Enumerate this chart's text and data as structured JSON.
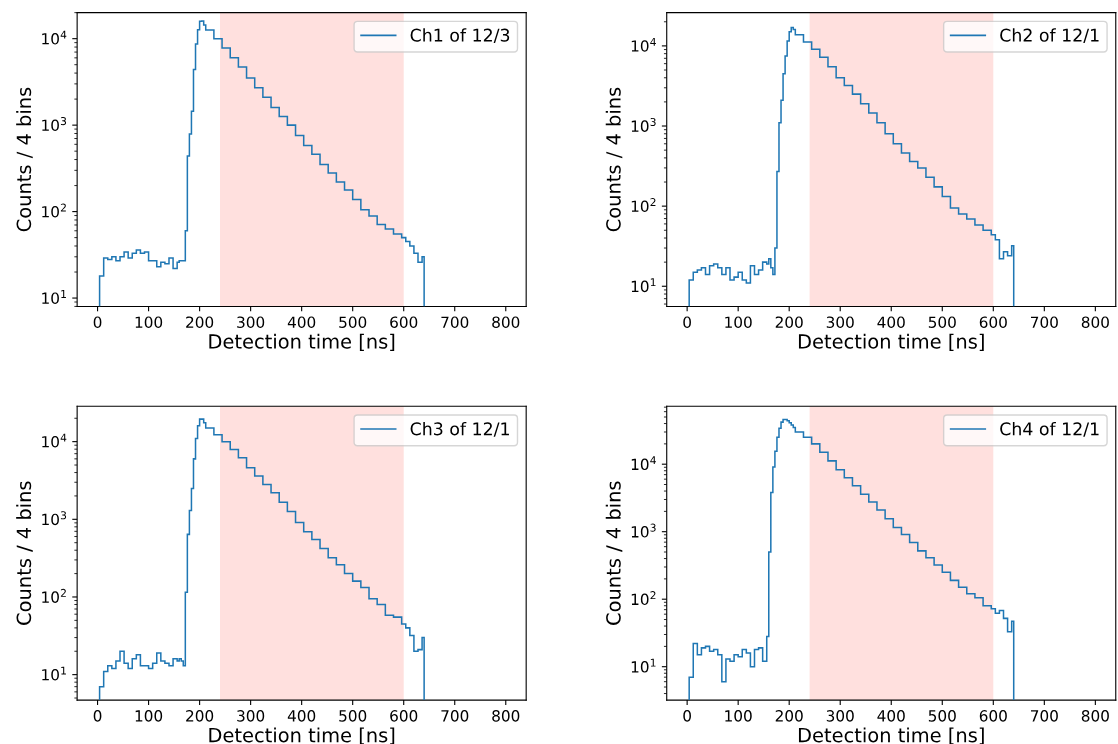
{
  "chart_data": [
    {
      "type": "histogram",
      "xlabel": "Detection time [ns]",
      "ylabel": "Counts / 4 bins",
      "log": "y",
      "legend": "top right",
      "grid": false,
      "bins": [
        4,
        12,
        20,
        28,
        36,
        44,
        52,
        60,
        68,
        76,
        84,
        92,
        100,
        108,
        116,
        124,
        132,
        140,
        148,
        156,
        160,
        164,
        168,
        172,
        176,
        180,
        184,
        188,
        192,
        196,
        200,
        204,
        208,
        212,
        228,
        244,
        260,
        276,
        292,
        308,
        324,
        340,
        356,
        372,
        388,
        404,
        420,
        436,
        452,
        468,
        484,
        500,
        516,
        532,
        548,
        564,
        580,
        596,
        604,
        612,
        620,
        628,
        636,
        640
      ],
      "series": [
        {
          "name": "Ch1 of 12/3",
          "color": "#1f77b4",
          "values": [
            18,
            29,
            28,
            30,
            27,
            30,
            34,
            29,
            33,
            36,
            33,
            34,
            27,
            27,
            23,
            26,
            25,
            29,
            22,
            26,
            27,
            27,
            27,
            60,
            440,
            790,
            1450,
            4400,
            8700,
            12700,
            15900,
            16000,
            14400,
            12600,
            10000,
            7800,
            6000,
            4700,
            3500,
            2700,
            2100,
            1600,
            1260,
            1000,
            760,
            580,
            460,
            350,
            280,
            220,
            178,
            138,
            105,
            89,
            71,
            63,
            55,
            50,
            45,
            40,
            33,
            26,
            30
          ]
        }
      ],
      "bands": [
        {
          "axis": "x",
          "from": 240,
          "to": 600,
          "color": "#ffe0de"
        }
      ],
      "xlim": [
        -40,
        840
      ],
      "xticks": [
        0,
        100,
        200,
        300,
        400,
        500,
        600,
        700,
        800
      ],
      "ylim": [
        8,
        20000
      ],
      "yticks": [
        {
          "value": 10,
          "label": "10$^{1}$"
        },
        {
          "value": 100,
          "label": "10$^{2}$"
        },
        {
          "value": 1000,
          "label": "10$^{3}$"
        },
        {
          "value": 10000,
          "label": "10$^{4}$"
        }
      ]
    },
    {
      "type": "histogram",
      "xlabel": "Detection time [ns]",
      "ylabel": "Counts / 4 bins",
      "log": "y",
      "legend": "top right",
      "grid": false,
      "bins": [
        4,
        12,
        20,
        28,
        36,
        44,
        52,
        60,
        68,
        76,
        84,
        92,
        100,
        108,
        116,
        124,
        132,
        140,
        148,
        156,
        160,
        164,
        168,
        172,
        176,
        180,
        184,
        188,
        192,
        196,
        200,
        204,
        208,
        212,
        228,
        244,
        260,
        276,
        292,
        308,
        324,
        340,
        356,
        372,
        388,
        404,
        420,
        436,
        452,
        468,
        484,
        500,
        516,
        532,
        548,
        564,
        580,
        596,
        604,
        612,
        620,
        628,
        636,
        640
      ],
      "series": [
        {
          "name": "Ch2 of 12/1",
          "color": "#1f77b4",
          "values": [
            12,
            15,
            16,
            17,
            14,
            18,
            19,
            17,
            14,
            17,
            12,
            13,
            15,
            12,
            11,
            18,
            14,
            16,
            20,
            19,
            22,
            17,
            14,
            30,
            270,
            1100,
            2100,
            4500,
            7500,
            11500,
            15000,
            17000,
            16000,
            13800,
            11200,
            9100,
            7200,
            5500,
            4000,
            3200,
            2500,
            1900,
            1450,
            1100,
            800,
            600,
            460,
            360,
            300,
            230,
            174,
            132,
            95,
            80,
            69,
            58,
            50,
            44,
            38,
            22,
            27,
            24,
            32
          ]
        }
      ],
      "bands": [
        {
          "axis": "x",
          "from": 240,
          "to": 600,
          "color": "#ffe0de"
        }
      ],
      "xlim": [
        -40,
        840
      ],
      "xticks": [
        0,
        100,
        200,
        300,
        400,
        500,
        600,
        700,
        800
      ],
      "ylim": [
        5.6,
        26000
      ],
      "yticks": [
        {
          "value": 10,
          "label": "10$^{1}$"
        },
        {
          "value": 100,
          "label": "10$^{2}$"
        },
        {
          "value": 1000,
          "label": "10$^{3}$"
        },
        {
          "value": 10000,
          "label": "10$^{4}$"
        }
      ]
    },
    {
      "type": "histogram",
      "xlabel": "Detection time [ns]",
      "ylabel": "Counts / 4 bins",
      "log": "y",
      "legend": "top right",
      "grid": false,
      "bins": [
        4,
        12,
        20,
        28,
        36,
        44,
        52,
        60,
        68,
        76,
        84,
        92,
        100,
        108,
        116,
        124,
        132,
        140,
        148,
        156,
        160,
        164,
        168,
        172,
        176,
        180,
        184,
        188,
        192,
        196,
        200,
        204,
        208,
        212,
        228,
        244,
        260,
        276,
        292,
        308,
        324,
        340,
        356,
        372,
        388,
        404,
        420,
        436,
        452,
        468,
        484,
        500,
        516,
        532,
        548,
        564,
        580,
        596,
        604,
        612,
        620,
        628,
        636,
        640
      ],
      "series": [
        {
          "name": "Ch3 of 12/1",
          "color": "#1f77b4",
          "values": [
            7,
            11,
            13,
            12,
            15,
            20,
            14,
            12,
            16,
            18,
            13,
            13,
            12,
            14,
            19,
            15,
            14,
            13,
            16,
            15,
            16,
            15,
            13,
            115,
            640,
            1300,
            2500,
            6000,
            11000,
            16000,
            19500,
            19500,
            17500,
            15000,
            12300,
            10000,
            7900,
            6200,
            4600,
            3600,
            2800,
            2200,
            1660,
            1260,
            910,
            690,
            550,
            420,
            320,
            260,
            200,
            160,
            132,
            95,
            80,
            58,
            55,
            45,
            40,
            32,
            20,
            21,
            30
          ]
        }
      ],
      "bands": [
        {
          "axis": "x",
          "from": 240,
          "to": 600,
          "color": "#ffe0de"
        }
      ],
      "xlim": [
        -40,
        840
      ],
      "xticks": [
        0,
        100,
        200,
        300,
        400,
        500,
        600,
        700,
        800
      ],
      "ylim": [
        4.7,
        28500
      ],
      "yticks": [
        {
          "value": 10,
          "label": "10$^{1}$"
        },
        {
          "value": 100,
          "label": "10$^{2}$"
        },
        {
          "value": 1000,
          "label": "10$^{3}$"
        },
        {
          "value": 10000,
          "label": "10$^{4}$"
        }
      ]
    },
    {
      "type": "histogram",
      "xlabel": "Detection time [ns]",
      "ylabel": "Counts / 4 bins",
      "log": "y",
      "legend": "top right",
      "grid": false,
      "bins": [
        4,
        12,
        20,
        28,
        36,
        44,
        52,
        60,
        68,
        76,
        84,
        92,
        100,
        108,
        116,
        124,
        132,
        140,
        148,
        156,
        160,
        164,
        168,
        172,
        176,
        180,
        184,
        188,
        192,
        196,
        200,
        204,
        208,
        212,
        228,
        244,
        260,
        276,
        292,
        308,
        324,
        340,
        356,
        372,
        388,
        404,
        420,
        436,
        452,
        468,
        484,
        500,
        516,
        532,
        548,
        564,
        580,
        596,
        604,
        612,
        620,
        628,
        636,
        640
      ],
      "series": [
        {
          "name": "Ch4 of 12/1",
          "color": "#1f77b4",
          "values": [
            7,
            22,
            15,
            19,
            20,
            17,
            18,
            15,
            6,
            13,
            12,
            15,
            14,
            18,
            16,
            10,
            18,
            19,
            12,
            28,
            500,
            3800,
            9100,
            15500,
            25000,
            34000,
            42000,
            46000,
            46000,
            44000,
            41000,
            38000,
            35000,
            30000,
            25000,
            20000,
            15000,
            11200,
            8300,
            6300,
            4800,
            3600,
            2750,
            2100,
            1550,
            1150,
            910,
            690,
            520,
            410,
            320,
            250,
            190,
            150,
            120,
            105,
            80,
            72,
            62,
            68,
            52,
            33,
            47
          ]
        }
      ],
      "bands": [
        {
          "axis": "x",
          "from": 240,
          "to": 600,
          "color": "#ffe0de"
        }
      ],
      "xlim": [
        -40,
        840
      ],
      "xticks": [
        0,
        100,
        200,
        300,
        400,
        500,
        600,
        700,
        800
      ],
      "ylim": [
        3.2,
        72000
      ],
      "yticks": [
        {
          "value": 10,
          "label": "10$^{1}$"
        },
        {
          "value": 100,
          "label": "10$^{2}$"
        },
        {
          "value": 1000,
          "label": "10$^{3}$"
        },
        {
          "value": 10000,
          "label": "10$^{4}$"
        }
      ]
    }
  ]
}
